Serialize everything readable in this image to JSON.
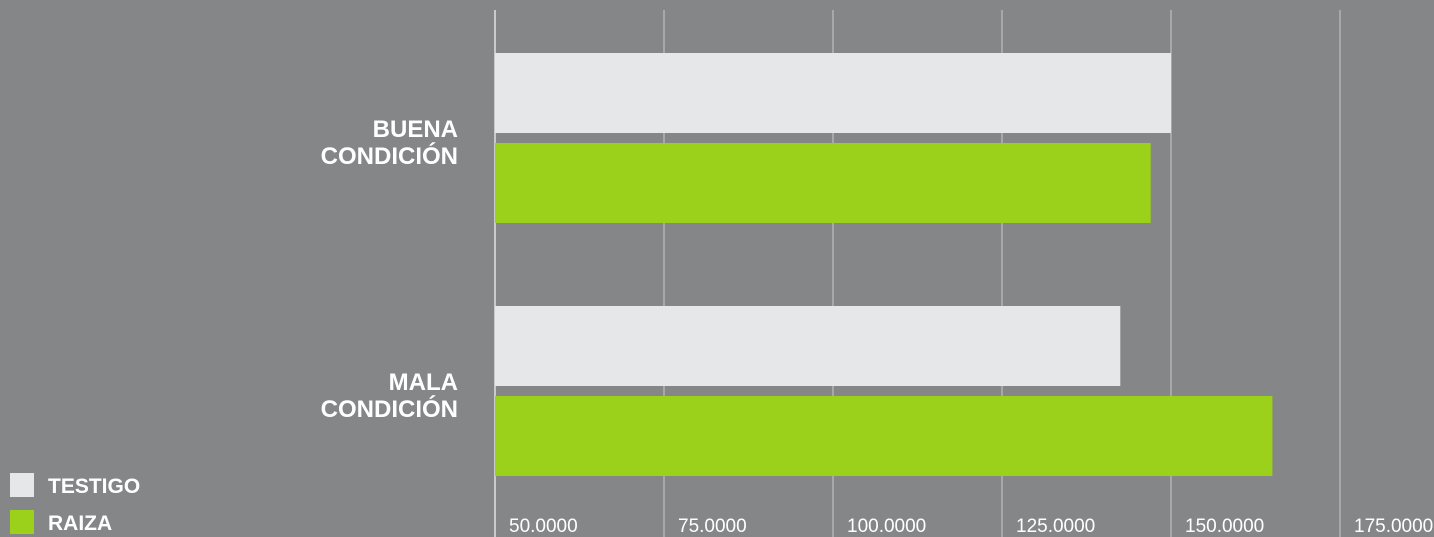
{
  "chart_data": {
    "type": "bar",
    "orientation": "horizontal",
    "categories": [
      "BUENA CONDICIÓN",
      "MALA CONDICIÓN"
    ],
    "category_lines": [
      [
        "BUENA",
        "CONDICIÓN"
      ],
      [
        "MALA",
        "CONDICIÓN"
      ]
    ],
    "series": [
      {
        "name": "TESTIGO",
        "color": "#e6e7e8",
        "values": [
          150.0,
          142.5
        ]
      },
      {
        "name": "RAIZA",
        "color": "#9bd11a",
        "values": [
          147.0,
          165.0
        ]
      }
    ],
    "x_ticks": [
      "50.0000",
      "75.0000",
      "100.0000",
      "125.0000",
      "150.0000",
      "175.0000"
    ],
    "xlim": [
      50,
      175
    ],
    "grid": true,
    "legend_position": "bottom-left",
    "background_color": "#858687",
    "grid_color": "#c9cacc"
  }
}
